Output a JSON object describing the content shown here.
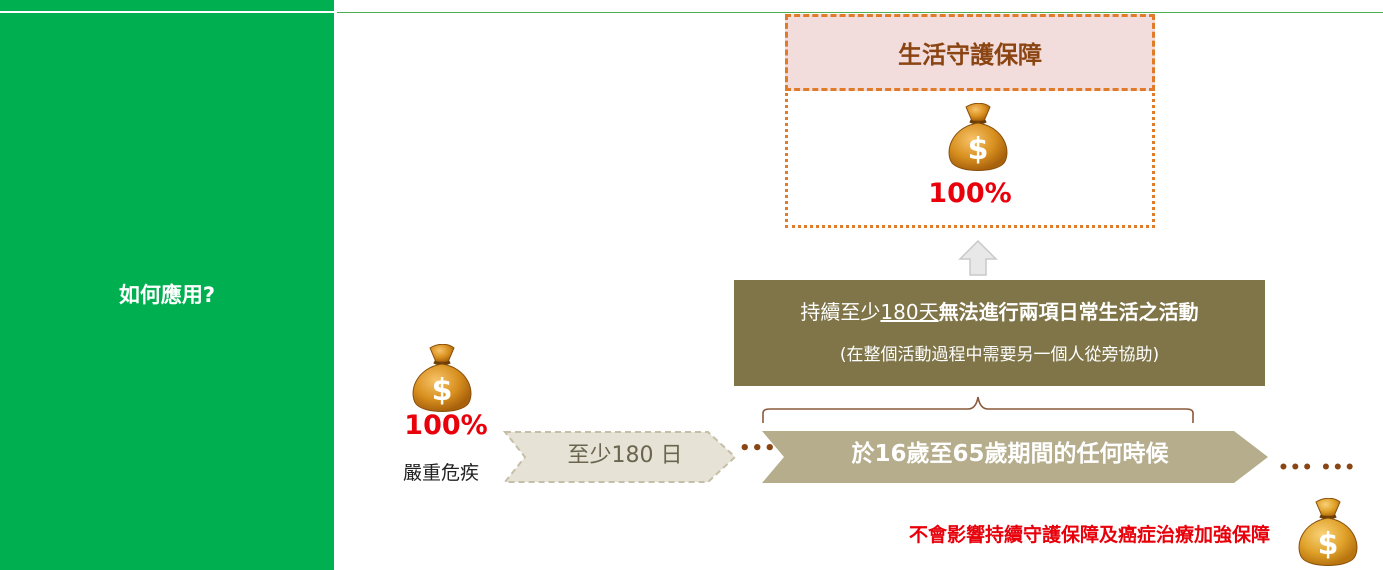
{
  "left_column": {
    "title": "如何應用?"
  },
  "protection_box": {
    "title": "生活守護保障",
    "percent": "100%"
  },
  "condition_box": {
    "line1_prefix": "持續至少",
    "line1_underline": "180天",
    "line1_bold": "無法進行兩項日常生活之活動",
    "line2": "(在整個活動過程中需要另一個人從旁協助)"
  },
  "left_benefit": {
    "percent": "100%",
    "caption": "嚴重危疾"
  },
  "chevrons": {
    "minimum_label": "至少180 日",
    "dots_after_min": "•••",
    "period_label": "於16歲至65歲期間的任何時候",
    "trailing_dots": "••• •••"
  },
  "footer": {
    "note": "不會影響持續守護保障及癌症治療加強保障"
  },
  "colors": {
    "green": "#00b050",
    "orange_border": "#e07b2a",
    "header_fill": "#f3dcdc",
    "olive": "#7f7548",
    "red": "#e8000b",
    "chevron_light": "#e6e3d6",
    "chevron_dark": "#b6ad8c"
  },
  "icons": [
    "money-bag-icon",
    "up-arrow-icon"
  ]
}
